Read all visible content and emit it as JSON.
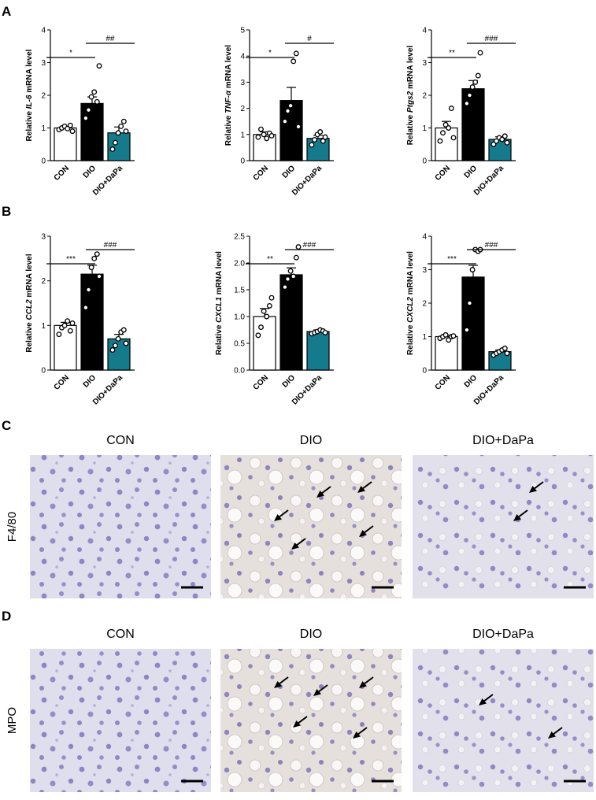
{
  "panel_letters": [
    "A",
    "B",
    "C",
    "D"
  ],
  "colors": {
    "con": "#ffffff",
    "dio": "#000000",
    "dapa": "#157a8c",
    "tissue_bg": "#dcdbea",
    "nucleus": "#8c86c4",
    "arrow": "#000000"
  },
  "chart_data": [
    {
      "type": "bar",
      "panel": "A",
      "ylabel_pre": "Relative ",
      "ylabel_gene": "IL-6",
      "ylabel_post": " mRNA level",
      "categories": [
        "CON",
        "DIO",
        "DIO+DaPa"
      ],
      "values": [
        1.0,
        1.75,
        0.85
      ],
      "sem": [
        0.05,
        0.2,
        0.18
      ],
      "points": [
        [
          0.95,
          1.0,
          1.05,
          0.98,
          1.08,
          0.9
        ],
        [
          1.3,
          1.55,
          1.95,
          2.1,
          1.8,
          2.9
        ],
        [
          0.35,
          0.55,
          0.85,
          1.05,
          1.2,
          0.9
        ]
      ],
      "ylim": [
        0,
        4
      ],
      "ticks": [
        0,
        1,
        2,
        3,
        4
      ],
      "sig": [
        {
          "from": 0,
          "to": 1,
          "label": "*"
        },
        {
          "from": 1,
          "to": 2,
          "label": "##"
        }
      ]
    },
    {
      "type": "bar",
      "panel": "A",
      "ylabel_pre": "Relative ",
      "ylabel_gene": "TNF-α",
      "ylabel_post": " mRNA level",
      "categories": [
        "CON",
        "DIO",
        "DIO+DaPa"
      ],
      "values": [
        1.0,
        2.3,
        0.85
      ],
      "sem": [
        0.1,
        0.5,
        0.12
      ],
      "points": [
        [
          0.9,
          1.2,
          1.0,
          0.85,
          1.05,
          0.95
        ],
        [
          1.5,
          1.9,
          2.1,
          3.8,
          4.1,
          1.3
        ],
        [
          0.6,
          0.8,
          1.0,
          1.1,
          0.75,
          0.9
        ]
      ],
      "ylim": [
        0,
        5
      ],
      "ticks": [
        0,
        1,
        2,
        3,
        4,
        5
      ],
      "sig": [
        {
          "from": 0,
          "to": 1,
          "label": "*"
        },
        {
          "from": 1,
          "to": 2,
          "label": "#"
        }
      ]
    },
    {
      "type": "bar",
      "panel": "A",
      "ylabel_pre": "Relative ",
      "ylabel_gene": "Ptgs2",
      "ylabel_post": " mRNA level",
      "categories": [
        "CON",
        "DIO",
        "DIO+DaPa"
      ],
      "values": [
        1.0,
        2.2,
        0.65
      ],
      "sem": [
        0.2,
        0.25,
        0.08
      ],
      "points": [
        [
          0.6,
          0.85,
          1.1,
          1.0,
          1.6,
          0.7
        ],
        [
          1.75,
          2.0,
          2.25,
          2.4,
          2.6,
          3.3
        ],
        [
          0.5,
          0.6,
          0.7,
          0.65,
          0.75,
          0.55
        ]
      ],
      "ylim": [
        0,
        4
      ],
      "ticks": [
        0,
        1,
        2,
        3,
        4
      ],
      "sig": [
        {
          "from": 0,
          "to": 1,
          "label": "**"
        },
        {
          "from": 1,
          "to": 2,
          "label": "###"
        }
      ]
    },
    {
      "type": "bar",
      "panel": "B",
      "ylabel_pre": "Relative ",
      "ylabel_gene": "CCL2",
      "ylabel_post": " mRNA level",
      "categories": [
        "CON",
        "DIO",
        "DIO+DaPa"
      ],
      "values": [
        1.0,
        2.15,
        0.7
      ],
      "sem": [
        0.07,
        0.2,
        0.1
      ],
      "points": [
        [
          0.8,
          0.95,
          1.0,
          1.1,
          0.88,
          1.05
        ],
        [
          1.4,
          1.8,
          2.3,
          2.5,
          2.6,
          2.1
        ],
        [
          0.45,
          0.55,
          0.7,
          0.85,
          0.9,
          0.6
        ]
      ],
      "ylim": [
        0,
        3
      ],
      "ticks": [
        0,
        1,
        2,
        3
      ],
      "sig": [
        {
          "from": 0,
          "to": 1,
          "label": "***"
        },
        {
          "from": 1,
          "to": 2,
          "label": "###"
        }
      ]
    },
    {
      "type": "bar",
      "panel": "B",
      "ylabel_pre": "Relative ",
      "ylabel_gene": "CXCL1",
      "ylabel_post": " mRNA level",
      "categories": [
        "CON",
        "DIO",
        "DIO+DaPa"
      ],
      "values": [
        1.0,
        1.78,
        0.72
      ],
      "sem": [
        0.15,
        0.13,
        0.03
      ],
      "points": [
        [
          0.65,
          0.8,
          1.1,
          1.0,
          1.2,
          1.35
        ],
        [
          1.55,
          1.7,
          1.85,
          1.75,
          2.1,
          2.3
        ],
        [
          0.68,
          0.7,
          0.72,
          0.75,
          0.73,
          0.7
        ]
      ],
      "ylim": [
        0,
        2.5
      ],
      "ticks": [
        0.0,
        0.5,
        1.0,
        1.5,
        2.0,
        2.5
      ],
      "tick_decimals": 1,
      "sig": [
        {
          "from": 0,
          "to": 1,
          "label": "**"
        },
        {
          "from": 1,
          "to": 2,
          "label": "###"
        }
      ]
    },
    {
      "type": "bar",
      "panel": "B",
      "ylabel_pre": "Relative ",
      "ylabel_gene": "CXCL2",
      "ylabel_post": " mRNA level",
      "categories": [
        "CON",
        "DIO",
        "DIO+DaPa"
      ],
      "values": [
        1.0,
        2.78,
        0.55
      ],
      "sem": [
        0.04,
        0.35,
        0.05
      ],
      "points": [
        [
          0.95,
          1.0,
          1.05,
          0.9,
          1.0,
          1.02
        ],
        [
          1.2,
          2.0,
          3.0,
          3.6,
          3.55,
          3.6
        ],
        [
          0.45,
          0.5,
          0.55,
          0.6,
          0.65,
          0.5
        ]
      ],
      "ylim": [
        0,
        4
      ],
      "ticks": [
        0,
        1,
        2,
        3,
        4
      ],
      "sig": [
        {
          "from": 0,
          "to": 1,
          "label": "***"
        },
        {
          "from": 1,
          "to": 2,
          "label": "###"
        }
      ]
    }
  ],
  "histology": {
    "column_labels": [
      "CON",
      "DIO",
      "DIO+DaPa"
    ],
    "rows": [
      {
        "panel": "C",
        "label": "F4/80",
        "arrows": [
          0,
          5,
          2
        ]
      },
      {
        "panel": "D",
        "label": "MPO",
        "arrows": [
          0,
          5,
          2
        ]
      }
    ]
  }
}
